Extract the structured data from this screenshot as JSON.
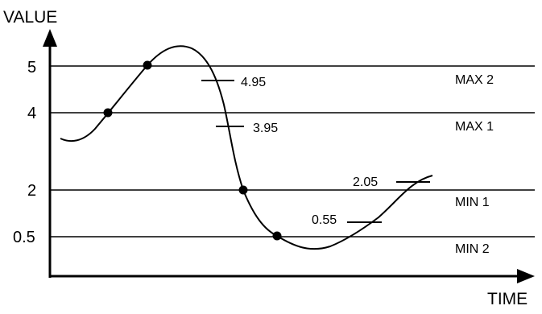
{
  "axes": {
    "y_title": "VALUE",
    "x_title": "TIME",
    "y_ticks": [
      {
        "label": "5",
        "value": 5
      },
      {
        "label": "4",
        "value": 4
      },
      {
        "label": "2",
        "value": 2
      },
      {
        "label": "0.5",
        "value": 0.5
      }
    ]
  },
  "levels": [
    {
      "label": "MAX 2",
      "value": 5
    },
    {
      "label": "MAX 1",
      "value": 4
    },
    {
      "label": "MIN 1",
      "value": 2
    },
    {
      "label": "MIN 2",
      "value": 0.5
    }
  ],
  "annotations": [
    {
      "label": "4.95",
      "value": 4.95
    },
    {
      "label": "3.95",
      "value": 3.95
    },
    {
      "label": "0.55",
      "value": 0.55
    },
    {
      "label": "2.05",
      "value": 2.05
    }
  ],
  "crossing_points": 4,
  "colors": {
    "ink": "#000000",
    "background": "#ffffff"
  }
}
